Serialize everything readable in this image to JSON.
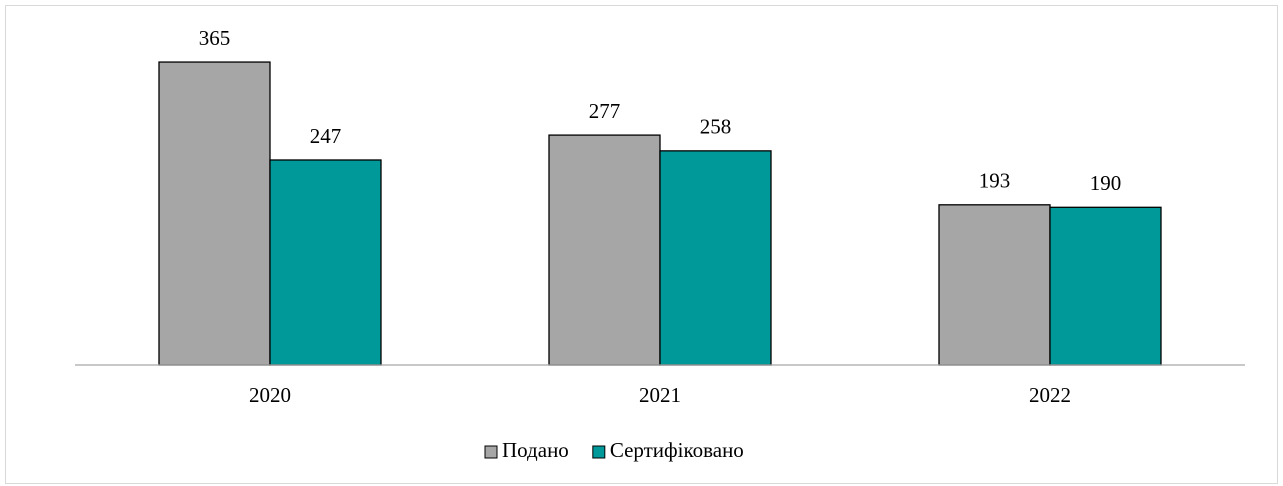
{
  "chart_data": {
    "type": "bar",
    "categories": [
      "2020",
      "2021",
      "2022"
    ],
    "series": [
      {
        "name": "Подано",
        "color": "#a6a6a6",
        "values": [
          365,
          277,
          193
        ]
      },
      {
        "name": "Сертифіковано",
        "color": "#009999",
        "values": [
          247,
          258,
          190
        ]
      }
    ],
    "ylim": [
      0,
      400
    ],
    "grid": false,
    "legend": "bottom"
  }
}
